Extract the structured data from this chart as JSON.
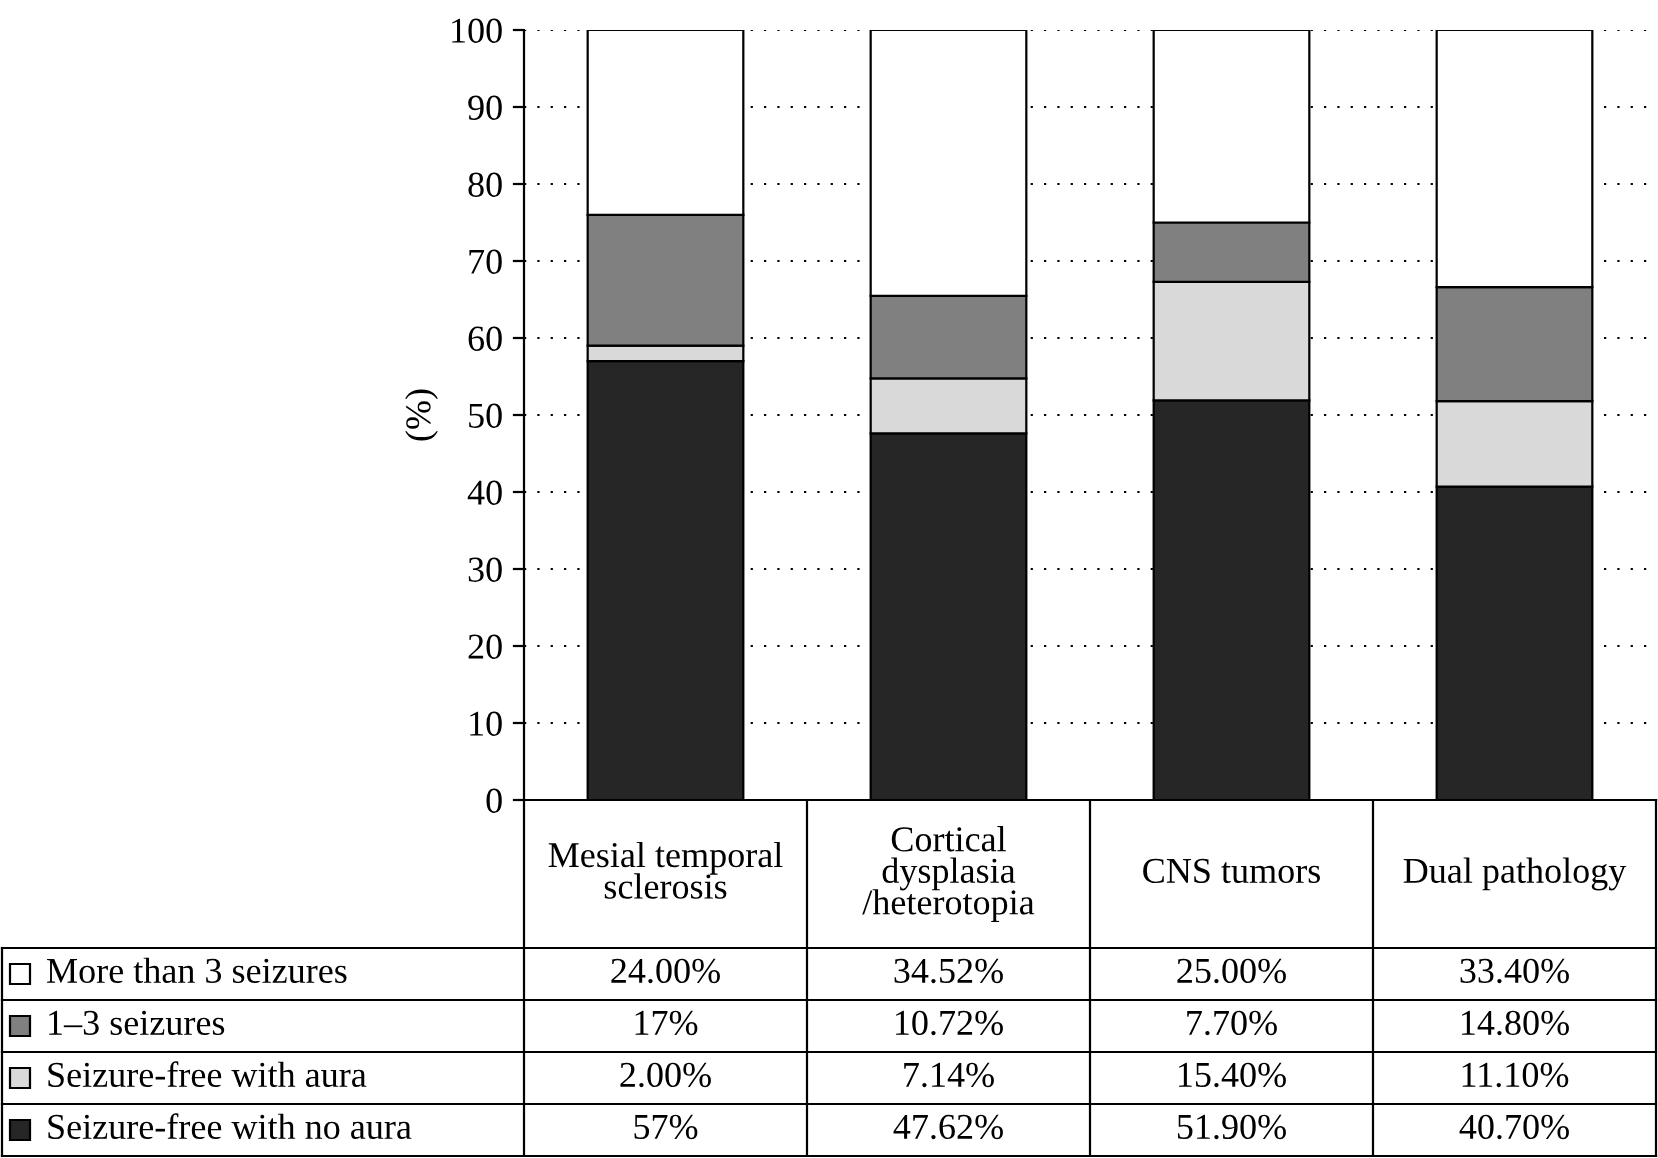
{
  "chart_data": {
    "type": "bar",
    "stacked": true,
    "ylabel": "(%)",
    "categories": [
      "Mesial temporal\nsclerosis",
      "Cortical\ndysplasia\n/heterotopia",
      "CNS tumors",
      "Dual pathology"
    ],
    "series": [
      {
        "name": "Seizure-free with no aura",
        "color": "#262626",
        "values": [
          57,
          47.62,
          51.9,
          40.7
        ],
        "value_labels": [
          "57%",
          "47.62%",
          "51.90%",
          "40.70%"
        ]
      },
      {
        "name": "Seizure-free with aura",
        "color": "#d9d9d9",
        "values": [
          2,
          7.14,
          15.4,
          11.1
        ],
        "value_labels": [
          "2.00%",
          "7.14%",
          "15.40%",
          "11.10%"
        ]
      },
      {
        "name": "1–3 seizures",
        "color": "#808080",
        "values": [
          17,
          10.72,
          7.7,
          14.8
        ],
        "value_labels": [
          "17%",
          "10.72%",
          "7.70%",
          "14.80%"
        ]
      },
      {
        "name": "More than 3 seizures",
        "color": "#ffffff",
        "values": [
          24,
          34.52,
          25,
          33.4
        ],
        "value_labels": [
          "24.00%",
          "34.52%",
          "25.00%",
          "33.40%"
        ]
      }
    ],
    "ylim": [
      0,
      100
    ],
    "yticks": [
      0,
      10,
      20,
      30,
      40,
      50,
      60,
      70,
      80,
      90,
      100
    ],
    "grid": "y",
    "legend": "bottom"
  }
}
